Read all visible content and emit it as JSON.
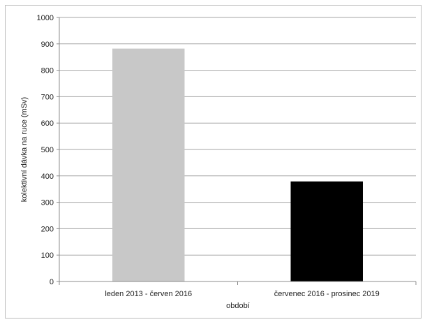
{
  "chart_data": {
    "type": "bar",
    "categories": [
      "leden 2013 - červen 2016",
      "červenec 2016 - prosinec 2019"
    ],
    "values": [
      882,
      379
    ],
    "bar_colors": [
      "#c8c8c8",
      "#000000"
    ],
    "xlabel": "období",
    "ylabel": "kolektivní dávka na ruce (mSv)",
    "ylim": [
      0,
      1000
    ],
    "yticks": [
      0,
      100,
      200,
      300,
      400,
      500,
      600,
      700,
      800,
      900,
      1000
    ],
    "grid": true,
    "legend": "none"
  }
}
